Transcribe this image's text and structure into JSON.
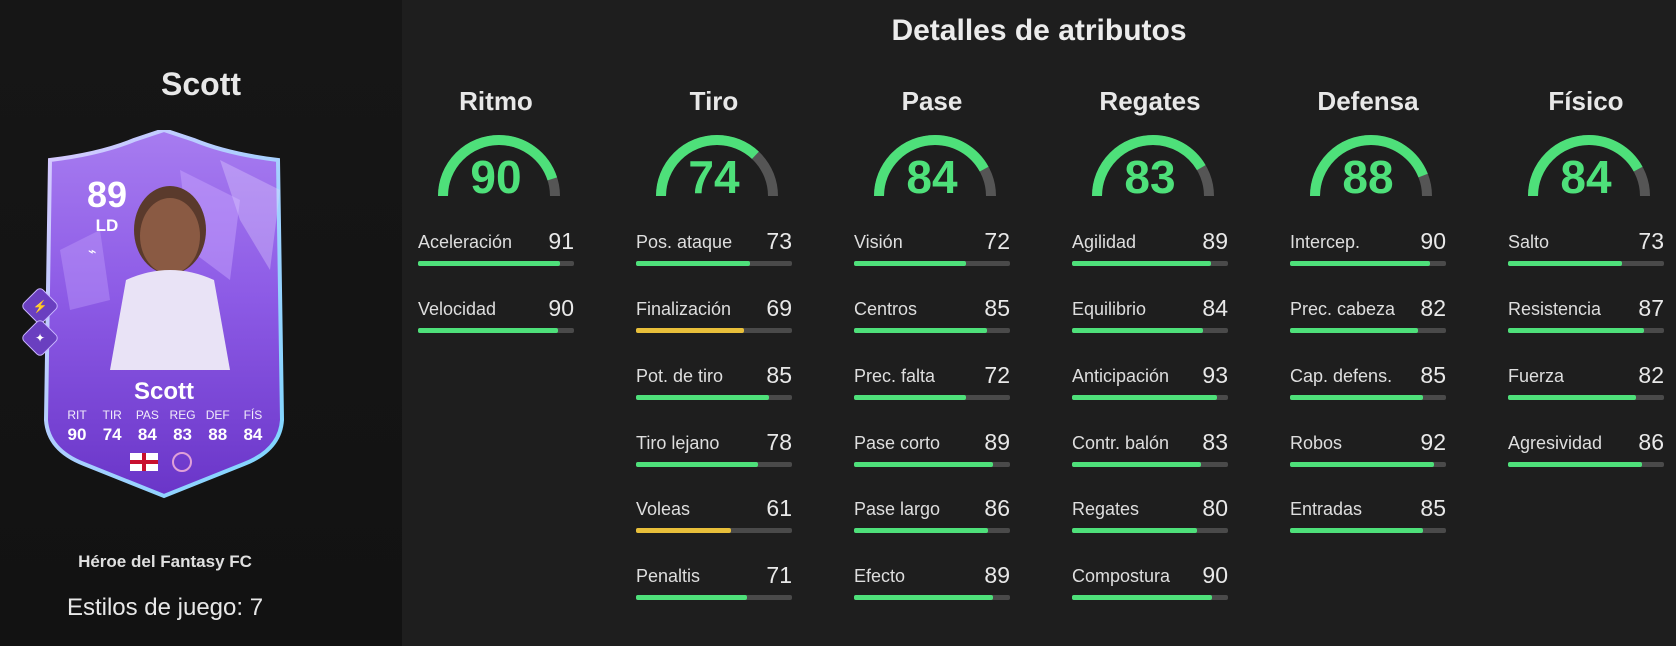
{
  "player": {
    "name": "Scott",
    "rating": "89",
    "position": "LD",
    "card_type": "Héroe del Fantasy FC",
    "playstyles": "Estilos de juego: 7",
    "card_stats": [
      {
        "label": "RIT",
        "value": "90"
      },
      {
        "label": "TIR",
        "value": "74"
      },
      {
        "label": "PAS",
        "value": "84"
      },
      {
        "label": "REG",
        "value": "83"
      },
      {
        "label": "DEF",
        "value": "88"
      },
      {
        "label": "FÍS",
        "value": "84"
      }
    ]
  },
  "title": "Detalles de atributos",
  "colors": {
    "green": "#4ee07a",
    "yellow": "#e8bf3a",
    "track": "#4a4a4a",
    "card": "#7b49d8"
  },
  "categories": [
    {
      "name": "Ritmo",
      "value": 90,
      "attributes": [
        {
          "name": "Aceleración",
          "value": 91
        },
        {
          "name": "Velocidad",
          "value": 90
        }
      ]
    },
    {
      "name": "Tiro",
      "value": 74,
      "attributes": [
        {
          "name": "Pos. ataque",
          "value": 73
        },
        {
          "name": "Finalización",
          "value": 69
        },
        {
          "name": "Pot. de tiro",
          "value": 85
        },
        {
          "name": "Tiro lejano",
          "value": 78
        },
        {
          "name": "Voleas",
          "value": 61
        },
        {
          "name": "Penaltis",
          "value": 71
        }
      ]
    },
    {
      "name": "Pase",
      "value": 84,
      "attributes": [
        {
          "name": "Visión",
          "value": 72
        },
        {
          "name": "Centros",
          "value": 85
        },
        {
          "name": "Prec. falta",
          "value": 72
        },
        {
          "name": "Pase corto",
          "value": 89
        },
        {
          "name": "Pase largo",
          "value": 86
        },
        {
          "name": "Efecto",
          "value": 89
        }
      ]
    },
    {
      "name": "Regates",
      "value": 83,
      "attributes": [
        {
          "name": "Agilidad",
          "value": 89
        },
        {
          "name": "Equilibrio",
          "value": 84
        },
        {
          "name": "Anticipación",
          "value": 93
        },
        {
          "name": "Contr. balón",
          "value": 83
        },
        {
          "name": "Regates",
          "value": 80
        },
        {
          "name": "Compostura",
          "value": 90
        }
      ]
    },
    {
      "name": "Defensa",
      "value": 88,
      "attributes": [
        {
          "name": "Intercep.",
          "value": 90
        },
        {
          "name": "Prec. cabeza",
          "value": 82
        },
        {
          "name": "Cap. defens.",
          "value": 85
        },
        {
          "name": "Robos",
          "value": 92
        },
        {
          "name": "Entradas",
          "value": 85
        }
      ]
    },
    {
      "name": "Físico",
      "value": 84,
      "attributes": [
        {
          "name": "Salto",
          "value": 73
        },
        {
          "name": "Resistencia",
          "value": 87
        },
        {
          "name": "Fuerza",
          "value": 82
        },
        {
          "name": "Agresividad",
          "value": 86
        }
      ]
    }
  ]
}
